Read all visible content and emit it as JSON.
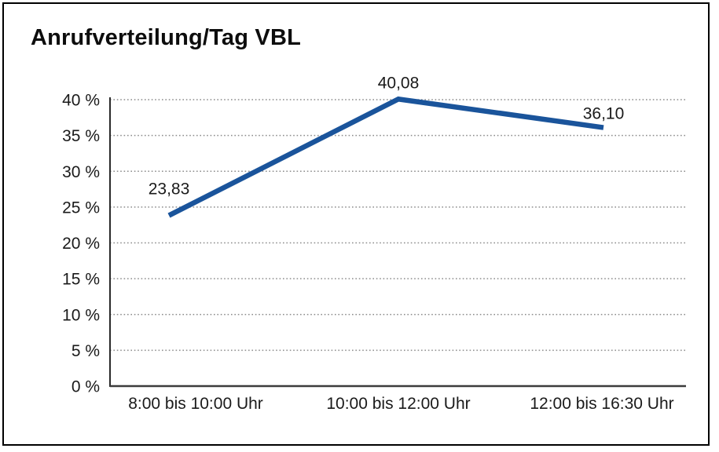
{
  "title": "Anrufverteilung/Tag VBL",
  "chart_data": {
    "type": "line",
    "title": "Anrufverteilung/Tag VBL",
    "categories": [
      "8:00 bis 10:00 Uhr",
      "10:00 bis 12:00 Uhr",
      "12:00 bis 16:30 Uhr"
    ],
    "values": [
      23.83,
      40.08,
      36.1
    ],
    "point_labels": [
      "23,83",
      "40,08",
      "36,10"
    ],
    "yticks": [
      0,
      5,
      10,
      15,
      20,
      25,
      30,
      35,
      40
    ],
    "ytick_labels": [
      "0 %",
      "5 %",
      "10 %",
      "15 %",
      "20 %",
      "25 %",
      "30 %",
      "35 %",
      "40 %"
    ],
    "ylim": [
      0,
      40
    ],
    "xlabel": "",
    "ylabel": "",
    "grid": "horizontal-dotted",
    "legend": "none",
    "colors": {
      "line": "#1a549b",
      "gridline": "#8c8c8c",
      "axis": "#3c3c3c",
      "text": "#1a1a1a"
    }
  }
}
